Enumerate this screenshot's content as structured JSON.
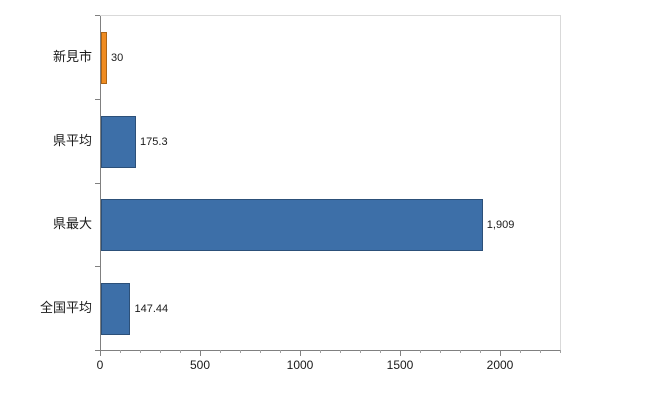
{
  "chart_data": {
    "type": "bar",
    "orientation": "horizontal",
    "title": "",
    "xlabel": "",
    "ylabel": "",
    "grid": false,
    "legend": "none",
    "categories": [
      "新見市",
      "県平均",
      "県最大",
      "全国平均"
    ],
    "values": [
      30,
      175.3,
      1909,
      147.44
    ],
    "value_labels": [
      "30",
      "175.3",
      "1,909",
      "147.44"
    ],
    "bar_colors": [
      "#f08c21",
      "#3d6fa8",
      "#3d6fa8",
      "#3d6fa8"
    ],
    "xlim": [
      0,
      2300
    ],
    "x_ticks": [
      0,
      500,
      1000,
      1500,
      2000
    ],
    "x_tick_labels": [
      "0",
      "500",
      "1000",
      "1500",
      "2000"
    ],
    "minor_tick_interval": 100
  },
  "colors": {
    "axis": "#808080",
    "plot_border": "#d9d9d9",
    "background": "#ffffff",
    "bar_default": "#3d6fa8",
    "bar_highlight": "#f08c21"
  }
}
